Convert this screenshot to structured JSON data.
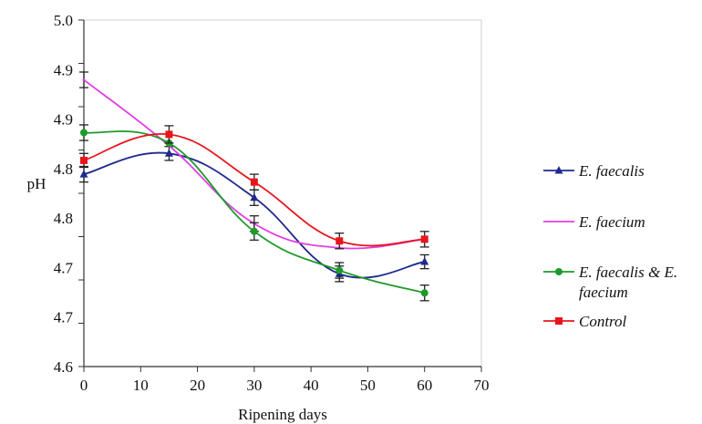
{
  "chart_data": {
    "type": "line",
    "title": "",
    "xlabel": "Ripening days",
    "ylabel": "pH",
    "xlim": [
      0,
      70
    ],
    "ylim": [
      4.6,
      5.0
    ],
    "xticks": [
      0,
      10,
      20,
      30,
      40,
      50,
      60,
      70
    ],
    "xtick_labels": [
      "0",
      "10",
      "20",
      "30",
      "40",
      "50",
      "60",
      "70"
    ],
    "yticks": [
      4.6,
      4.65,
      4.7,
      4.75,
      4.8,
      4.85,
      4.9,
      4.95,
      5.0
    ],
    "ytick_labels": [
      "4.6",
      "4.7",
      "4.7",
      "4.8",
      "4.8",
      "4.9",
      "4.9",
      "5.0",
      "5.0"
    ],
    "grid": false,
    "legend_position": "right",
    "x": [
      0,
      15,
      30,
      45,
      60
    ],
    "series": [
      {
        "name": "E. faecalis",
        "legend_lines": [
          "E. faecalis"
        ],
        "color": "#1f2a8c",
        "marker": "triangle",
        "values": [
          4.822,
          4.846,
          4.795,
          4.707,
          4.721
        ],
        "errors": [
          0.009,
          0.008,
          0.009,
          0.009,
          0.008
        ]
      },
      {
        "name": "E. faecium",
        "legend_lines": [
          "E. faecium"
        ],
        "color": "#e23ee2",
        "marker": "none",
        "values": [
          4.931,
          4.855,
          4.765,
          4.737,
          4.747
        ],
        "errors": [
          0.009,
          0.0,
          0.009,
          0.0,
          0.0
        ]
      },
      {
        "name": "E. faecalis & E. faecium",
        "legend_lines": [
          "E. faecalis & E.",
          "faecium"
        ],
        "color": "#1e9a2a",
        "marker": "circle",
        "values": [
          4.87,
          4.858,
          4.756,
          4.711,
          4.685
        ],
        "errors": [
          0.009,
          0.0,
          0.01,
          0.009,
          0.009
        ]
      },
      {
        "name": "Control",
        "legend_lines": [
          "Control"
        ],
        "color": "#e8141c",
        "marker": "square",
        "values": [
          4.838,
          4.868,
          4.813,
          4.745,
          4.747
        ],
        "errors": [
          0.008,
          0.01,
          0.009,
          0.009,
          0.009
        ]
      }
    ]
  }
}
